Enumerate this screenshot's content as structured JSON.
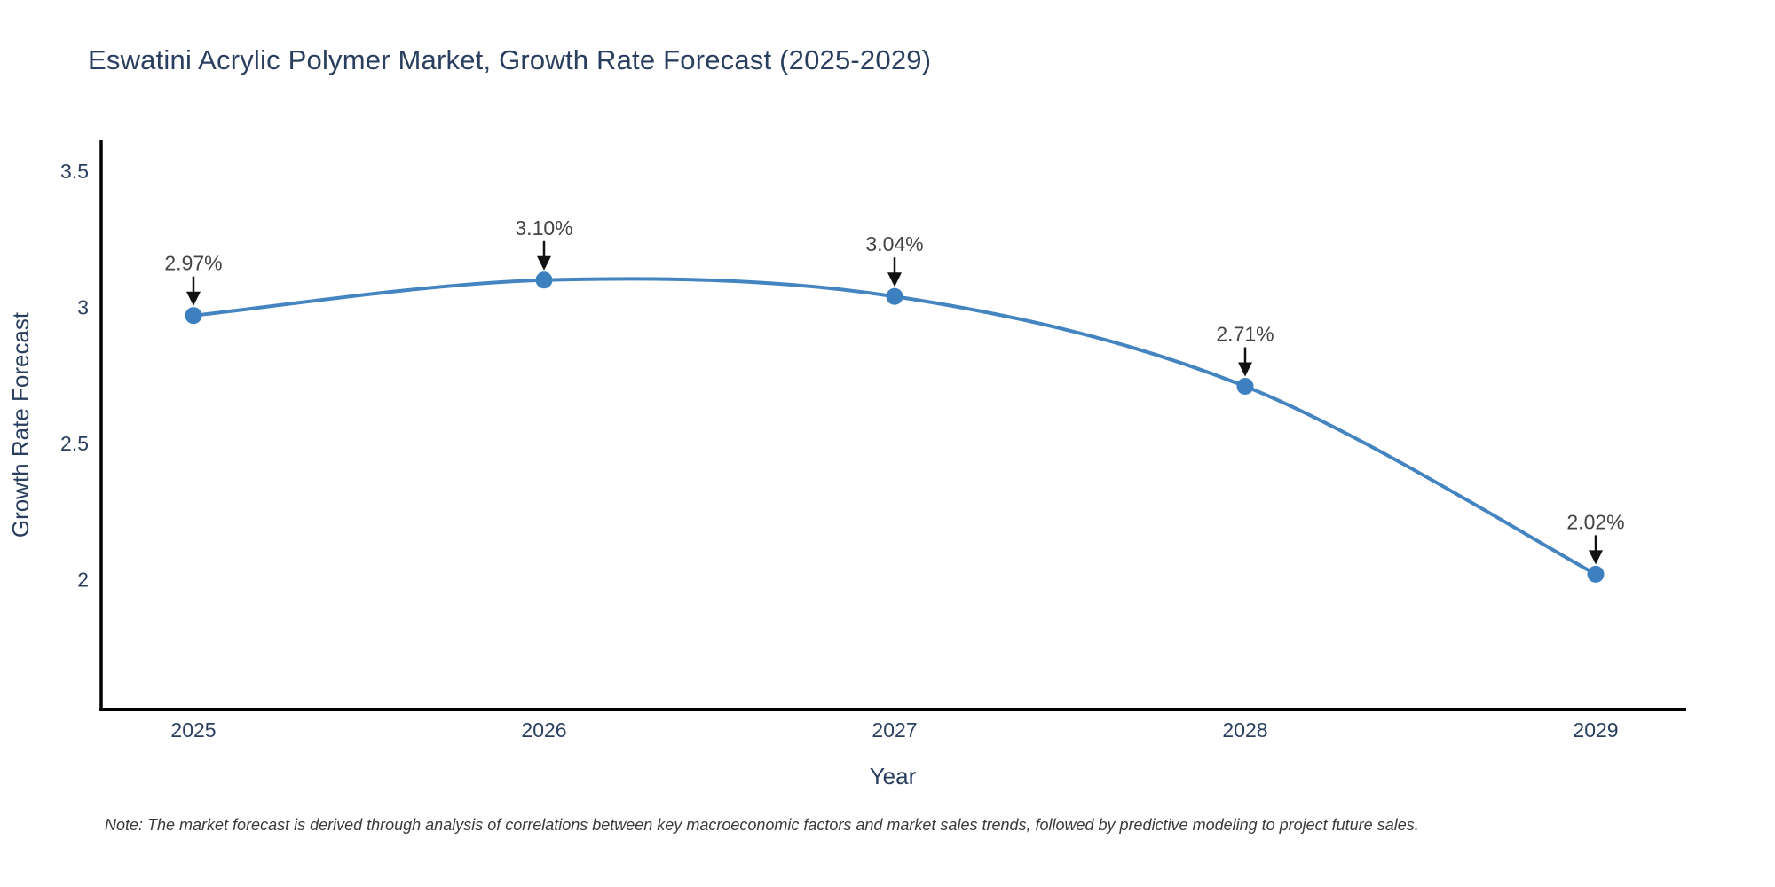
{
  "page": {
    "note": "Note: The market forecast is derived through analysis of correlations between key macroeconomic factors and market sales trends, followed by predictive modeling to project future sales."
  },
  "colors": {
    "line": "#4485c1",
    "marker": "#3c80c0",
    "axis": "#000000",
    "title_text": "#2a3f5f",
    "tick_text": "#2a3f5f",
    "annotation_text": "#444444",
    "arrow": "#111111",
    "background": "#ffffff"
  },
  "chart_data": {
    "type": "line",
    "line_shape": "spline",
    "title": "Eswatini Acrylic Polymer Market, Growth Rate Forecast (2025-2029)",
    "xlabel": "Year",
    "ylabel": "Growth Rate Forecast",
    "categories": [
      "2025",
      "2026",
      "2027",
      "2028",
      "2029"
    ],
    "values": [
      2.97,
      3.1,
      3.04,
      2.71,
      2.02
    ],
    "point_labels": [
      "2.97%",
      "3.10%",
      "3.04%",
      "2.71%",
      "2.02%"
    ],
    "yticks": [
      3.5,
      3,
      2.5,
      2
    ],
    "ylim": [
      1.52,
      3.61
    ],
    "grid": false,
    "legend": false,
    "annotation_style": "value label with down arrow to each point"
  }
}
